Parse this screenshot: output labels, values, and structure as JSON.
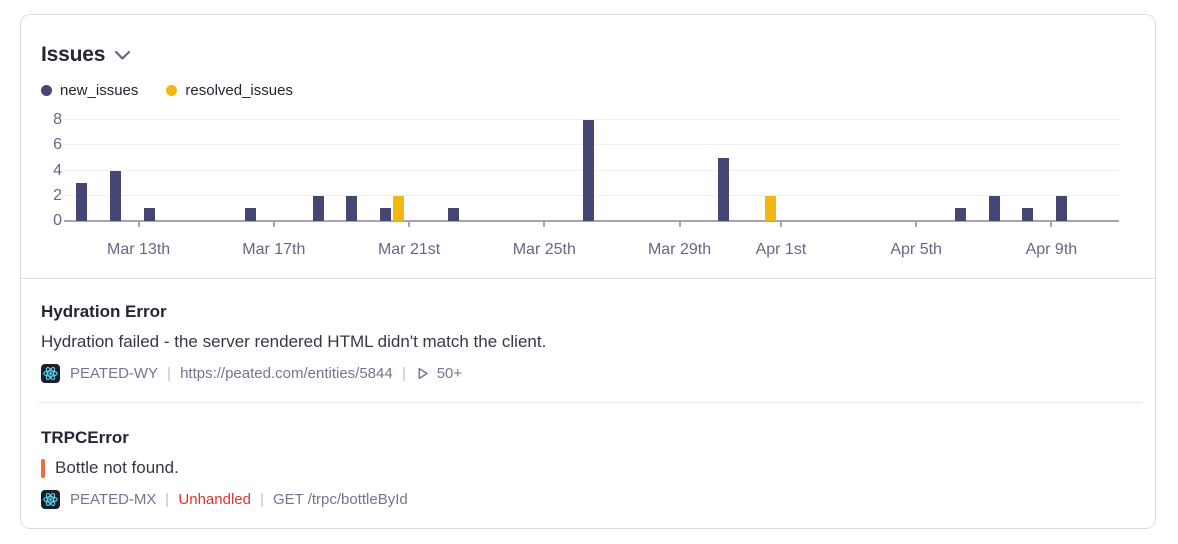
{
  "widget": {
    "title": "Issues"
  },
  "legend": [
    {
      "label": "new_issues",
      "color": "#444674"
    },
    {
      "label": "resolved_issues",
      "color": "#F2B712"
    }
  ],
  "chart_data": {
    "type": "bar",
    "title": "Issues",
    "categories": [
      "Mar 11",
      "Mar 12",
      "Mar 13",
      "Mar 14",
      "Mar 15",
      "Mar 16",
      "Mar 17",
      "Mar 18",
      "Mar 19",
      "Mar 20",
      "Mar 21",
      "Mar 22",
      "Mar 23",
      "Mar 24",
      "Mar 25",
      "Mar 26",
      "Mar 27",
      "Mar 28",
      "Mar 29",
      "Mar 30",
      "Mar 31",
      "Apr 1",
      "Apr 2",
      "Apr 3",
      "Apr 4",
      "Apr 5",
      "Apr 6",
      "Apr 7",
      "Apr 8",
      "Apr 9",
      "Apr 10"
    ],
    "series": [
      {
        "name": "new_issues",
        "color": "#444674",
        "values": [
          3,
          4,
          1,
          0,
          0,
          1,
          0,
          2,
          2,
          1,
          0,
          1,
          0,
          0,
          0,
          8,
          0,
          0,
          0,
          5,
          0,
          0,
          0,
          0,
          0,
          0,
          1,
          2,
          1,
          2,
          0
        ]
      },
      {
        "name": "resolved_issues",
        "color": "#F2B712",
        "values": [
          0,
          0,
          0,
          0,
          0,
          0,
          0,
          0,
          0,
          2,
          0,
          0,
          0,
          0,
          0,
          0,
          0,
          0,
          0,
          0,
          2,
          0,
          0,
          0,
          0,
          0,
          0,
          0,
          0,
          0,
          0
        ]
      }
    ],
    "x_ticks": [
      {
        "index": 2,
        "label": "Mar 13th"
      },
      {
        "index": 6,
        "label": "Mar 17th"
      },
      {
        "index": 10,
        "label": "Mar 21st"
      },
      {
        "index": 14,
        "label": "Mar 25th"
      },
      {
        "index": 18,
        "label": "Mar 29th"
      },
      {
        "index": 21,
        "label": "Apr 1st"
      },
      {
        "index": 25,
        "label": "Apr 5th"
      },
      {
        "index": 29,
        "label": "Apr 9th"
      }
    ],
    "y_ticks": [
      0,
      2,
      4,
      6,
      8
    ],
    "ylim": [
      0,
      8
    ],
    "grid": true,
    "legend_position": "top-left"
  },
  "issues": [
    {
      "title": "Hydration Error",
      "message": "Hydration failed - the server rendered HTML didn't match the client.",
      "platform_icon": "react-icon",
      "short_id": "PEATED-WY",
      "url": "https://peated.com/entities/5844",
      "replay_count": "50+"
    },
    {
      "title": "TRPCError",
      "message": "Bottle not found.",
      "platform_icon": "react-icon",
      "short_id": "PEATED-MX",
      "handled_status": "Unhandled",
      "transaction": "GET /trpc/bottleById"
    }
  ],
  "colors": {
    "new_issues": "#444674",
    "resolved_issues": "#F2B712",
    "unhandled_text": "#E0352B",
    "culprit_marker": "#EE6D45",
    "axis_text": "#6F6287",
    "meta_text": "#80708F"
  }
}
